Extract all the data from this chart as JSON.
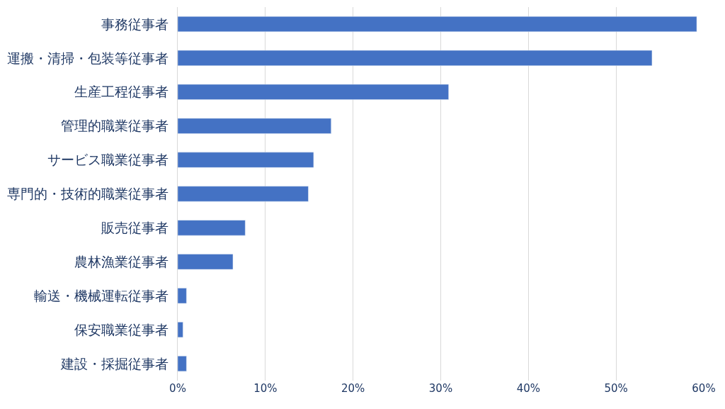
{
  "chart_data": {
    "type": "bar",
    "orientation": "horizontal",
    "categories": [
      "事務従事者",
      "運搬・清掃・包装等従事者",
      "生産工程従事者",
      "管理的職業従事者",
      "サービス職業従事者",
      "専門的・技術的職業従事者",
      "販売従事者",
      "農林漁業従事者",
      "輸送・機械運転従事者",
      "保安職業従事者",
      "建設・採掘従事者"
    ],
    "values": [
      59.2,
      54.1,
      30.9,
      17.5,
      15.5,
      14.9,
      7.7,
      6.3,
      1.0,
      0.6,
      1.0
    ],
    "color": "#4472c4",
    "xlim": [
      0,
      60
    ],
    "xticks": [
      {
        "value": 0,
        "label": "0%"
      },
      {
        "value": 10,
        "label": "10%"
      },
      {
        "value": 20,
        "label": "20%"
      },
      {
        "value": 30,
        "label": "30%"
      },
      {
        "value": 40,
        "label": "40%"
      },
      {
        "value": 50,
        "label": "50%"
      },
      {
        "value": 60,
        "label": "60%"
      }
    ],
    "grid": "x",
    "legend": false
  }
}
